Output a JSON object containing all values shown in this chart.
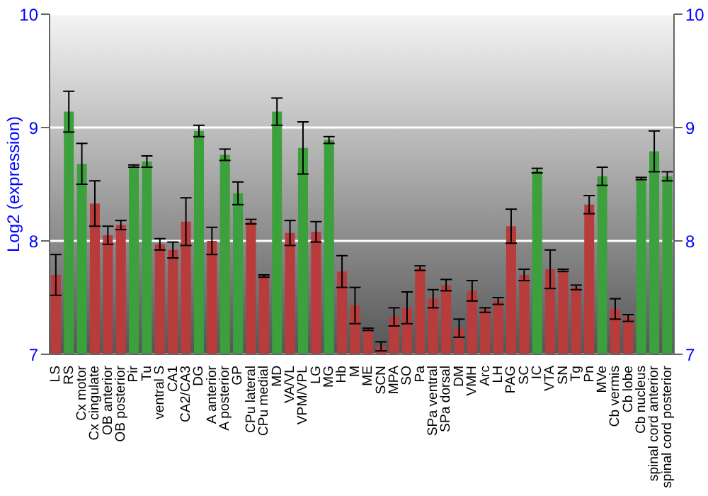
{
  "chart_data": {
    "type": "bar",
    "ylabel": "Log2 (expression)",
    "categories": [
      "LS",
      "RS",
      "Cx motor",
      "Cx cingulate",
      "OB anterior",
      "OB posterior",
      "Pir",
      "Tu",
      "ventral S",
      "CA1",
      "CA2/CA3",
      "DG",
      "A anterior",
      "A posterior",
      "GP",
      "CPu lateral",
      "CPu medial",
      "MD",
      "VA/VL",
      "VPM/VPL",
      "LG",
      "MG",
      "Hb",
      "M",
      "ME",
      "SCN",
      "MPA",
      "SO",
      "Pa",
      "SPa ventral",
      "SPa dorsal",
      "DM",
      "VMH",
      "Arc",
      "LH",
      "PAG",
      "SC",
      "IC",
      "VTA",
      "SN",
      "Tg",
      "Pn",
      "MVe",
      "Cb vermis",
      "Cb lobe",
      "Cb nucleus",
      "spinal cord anterior",
      "spinal cord posterior"
    ],
    "values": [
      7.7,
      9.14,
      8.68,
      8.33,
      8.05,
      8.14,
      8.66,
      8.7,
      7.97,
      7.92,
      8.17,
      8.97,
      8.0,
      8.76,
      8.42,
      8.17,
      7.69,
      9.14,
      8.07,
      8.82,
      8.08,
      8.89,
      7.73,
      7.43,
      7.22,
      7.07,
      7.33,
      7.41,
      7.76,
      7.49,
      7.61,
      7.23,
      7.56,
      7.39,
      7.47,
      8.13,
      7.7,
      8.62,
      7.75,
      7.74,
      7.59,
      8.32,
      8.57,
      7.4,
      7.32,
      8.55,
      8.79,
      8.57
    ],
    "errors": [
      0.18,
      0.18,
      0.18,
      0.2,
      0.08,
      0.04,
      0.01,
      0.05,
      0.05,
      0.07,
      0.21,
      0.05,
      0.12,
      0.05,
      0.1,
      0.02,
      0.01,
      0.12,
      0.11,
      0.23,
      0.09,
      0.03,
      0.14,
      0.16,
      0.01,
      0.04,
      0.08,
      0.14,
      0.02,
      0.08,
      0.05,
      0.08,
      0.09,
      0.02,
      0.03,
      0.15,
      0.05,
      0.02,
      0.17,
      0.01,
      0.02,
      0.08,
      0.08,
      0.09,
      0.03,
      0.01,
      0.18,
      0.04
    ],
    "colors": [
      "#b83c3c",
      "#3ca03c",
      "#3ca03c",
      "#b83c3c",
      "#b83c3c",
      "#b83c3c",
      "#3ca03c",
      "#3ca03c",
      "#b83c3c",
      "#b83c3c",
      "#b83c3c",
      "#3ca03c",
      "#b83c3c",
      "#3ca03c",
      "#3ca03c",
      "#b83c3c",
      "#b83c3c",
      "#3ca03c",
      "#b83c3c",
      "#3ca03c",
      "#b83c3c",
      "#3ca03c",
      "#b83c3c",
      "#b83c3c",
      "#b83c3c",
      "#b83c3c",
      "#b83c3c",
      "#b83c3c",
      "#b83c3c",
      "#b83c3c",
      "#b83c3c",
      "#b83c3c",
      "#b83c3c",
      "#b83c3c",
      "#b83c3c",
      "#b83c3c",
      "#b83c3c",
      "#3ca03c",
      "#b83c3c",
      "#b83c3c",
      "#b83c3c",
      "#b83c3c",
      "#3ca03c",
      "#b83c3c",
      "#b83c3c",
      "#3ca03c",
      "#3ca03c",
      "#3ca03c"
    ],
    "ylim": [
      7,
      10
    ],
    "yticks": [
      7,
      8,
      9,
      10
    ],
    "y2lim": [
      7,
      10
    ],
    "y2ticks": [
      7,
      8,
      9,
      10
    ],
    "grid": "y"
  }
}
